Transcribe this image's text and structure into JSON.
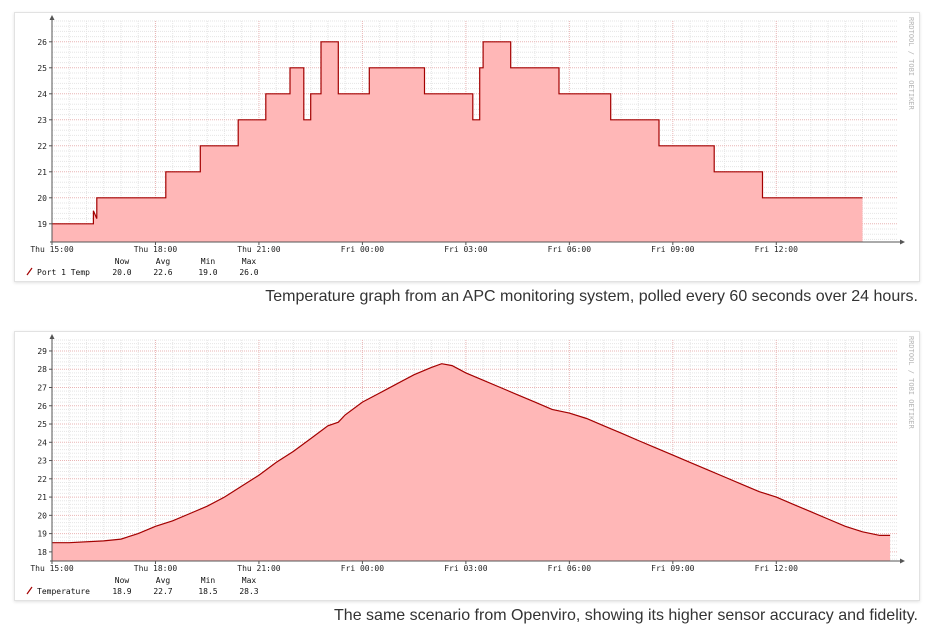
{
  "captions": {
    "first": "Temperature graph from an APC monitoring system, polled every 60 seconds over 24 hours.",
    "second": "The same scenario from Openviro, showing its higher sensor accuracy and fidelity."
  },
  "watermark": "RRDTOOL / TOBI OETIKER",
  "colors": {
    "area": "#ffb7b7",
    "line": "#a30000",
    "grid_major": "#e9b5b5",
    "grid_minor": "#e5e5e5",
    "axis": "#555555"
  },
  "chart_data": [
    {
      "type": "area",
      "x_tick_labels": [
        "Thu 15:00",
        "Thu 18:00",
        "Thu 21:00",
        "Fri 00:00",
        "Fri 03:00",
        "Fri 06:00",
        "Fri 09:00",
        "Fri 12:00"
      ],
      "xlim_hours": [
        0,
        24.5
      ],
      "y_tick_labels": [
        "19",
        "20",
        "21",
        "22",
        "23",
        "24",
        "25",
        "26"
      ],
      "ylim": [
        18.3,
        26.8
      ],
      "y_min_tick": 19,
      "grid": true,
      "legend": {
        "headers": [
          "Now",
          "Avg",
          "Min",
          "Max"
        ],
        "series_name": "Port 1 Temp",
        "values": [
          "20.0",
          "22.6",
          "19.0",
          "26.0"
        ]
      },
      "series": [
        {
          "name": "Port 1 Temp",
          "points": [
            [
              0,
              19
            ],
            [
              1.2,
              19
            ],
            [
              1.2,
              19.5
            ],
            [
              1.3,
              19.2
            ],
            [
              1.3,
              20
            ],
            [
              3.3,
              20
            ],
            [
              3.3,
              21
            ],
            [
              4.3,
              21
            ],
            [
              4.3,
              22
            ],
            [
              5.4,
              22
            ],
            [
              5.4,
              23
            ],
            [
              6.2,
              23
            ],
            [
              6.2,
              24
            ],
            [
              6.9,
              24
            ],
            [
              6.9,
              25
            ],
            [
              7.3,
              25
            ],
            [
              7.3,
              23
            ],
            [
              7.5,
              23
            ],
            [
              7.5,
              24
            ],
            [
              7.8,
              24
            ],
            [
              7.8,
              26
            ],
            [
              8.3,
              26
            ],
            [
              8.3,
              24
            ],
            [
              9.2,
              24
            ],
            [
              9.2,
              25
            ],
            [
              10.8,
              25
            ],
            [
              10.8,
              24
            ],
            [
              12.2,
              24
            ],
            [
              12.2,
              23
            ],
            [
              12.4,
              23
            ],
            [
              12.4,
              25
            ],
            [
              12.5,
              25
            ],
            [
              12.5,
              26
            ],
            [
              13.3,
              26
            ],
            [
              13.3,
              25
            ],
            [
              14.7,
              25
            ],
            [
              14.7,
              24
            ],
            [
              16.2,
              24
            ],
            [
              16.2,
              23
            ],
            [
              17.6,
              23
            ],
            [
              17.6,
              22
            ],
            [
              19.2,
              22
            ],
            [
              19.2,
              21
            ],
            [
              20.6,
              21
            ],
            [
              20.6,
              20
            ],
            [
              23.5,
              20
            ]
          ]
        }
      ]
    },
    {
      "type": "area",
      "x_tick_labels": [
        "Thu 15:00",
        "Thu 18:00",
        "Thu 21:00",
        "Fri 00:00",
        "Fri 03:00",
        "Fri 06:00",
        "Fri 09:00",
        "Fri 12:00"
      ],
      "xlim_hours": [
        0,
        24.5
      ],
      "y_tick_labels": [
        "18",
        "19",
        "20",
        "21",
        "22",
        "23",
        "24",
        "25",
        "26",
        "27",
        "28",
        "29"
      ],
      "ylim": [
        17.5,
        29.6
      ],
      "y_min_tick": 18,
      "grid": true,
      "legend": {
        "headers": [
          "Now",
          "Avg",
          "Min",
          "Max"
        ],
        "series_name": "Temperature",
        "values": [
          "18.9",
          "22.7",
          "18.5",
          "28.3"
        ]
      },
      "series": [
        {
          "name": "Temperature",
          "points": [
            [
              0,
              18.5
            ],
            [
              0.5,
              18.5
            ],
            [
              1.5,
              18.6
            ],
            [
              2,
              18.7
            ],
            [
              2.5,
              19
            ],
            [
              3,
              19.4
            ],
            [
              3.5,
              19.7
            ],
            [
              4,
              20.1
            ],
            [
              4.5,
              20.5
            ],
            [
              5,
              21
            ],
            [
              5.5,
              21.6
            ],
            [
              6,
              22.2
            ],
            [
              6.5,
              22.9
            ],
            [
              7,
              23.5
            ],
            [
              7.5,
              24.2
            ],
            [
              8,
              24.9
            ],
            [
              8.3,
              25.1
            ],
            [
              8.5,
              25.5
            ],
            [
              9,
              26.2
            ],
            [
              9.5,
              26.7
            ],
            [
              10,
              27.2
            ],
            [
              10.5,
              27.7
            ],
            [
              11,
              28.1
            ],
            [
              11.3,
              28.3
            ],
            [
              11.6,
              28.2
            ],
            [
              12,
              27.8
            ],
            [
              12.5,
              27.4
            ],
            [
              13,
              27
            ],
            [
              13.5,
              26.6
            ],
            [
              14,
              26.2
            ],
            [
              14.5,
              25.8
            ],
            [
              15,
              25.6
            ],
            [
              15.5,
              25.3
            ],
            [
              16,
              24.9
            ],
            [
              16.5,
              24.5
            ],
            [
              17,
              24.1
            ],
            [
              17.5,
              23.7
            ],
            [
              18,
              23.3
            ],
            [
              18.5,
              22.9
            ],
            [
              19,
              22.5
            ],
            [
              19.5,
              22.1
            ],
            [
              20,
              21.7
            ],
            [
              20.5,
              21.3
            ],
            [
              21,
              21
            ],
            [
              21.5,
              20.6
            ],
            [
              22,
              20.2
            ],
            [
              22.5,
              19.8
            ],
            [
              23,
              19.4
            ],
            [
              23.5,
              19.1
            ],
            [
              24,
              18.9
            ],
            [
              24.3,
              18.9
            ]
          ]
        }
      ]
    }
  ]
}
